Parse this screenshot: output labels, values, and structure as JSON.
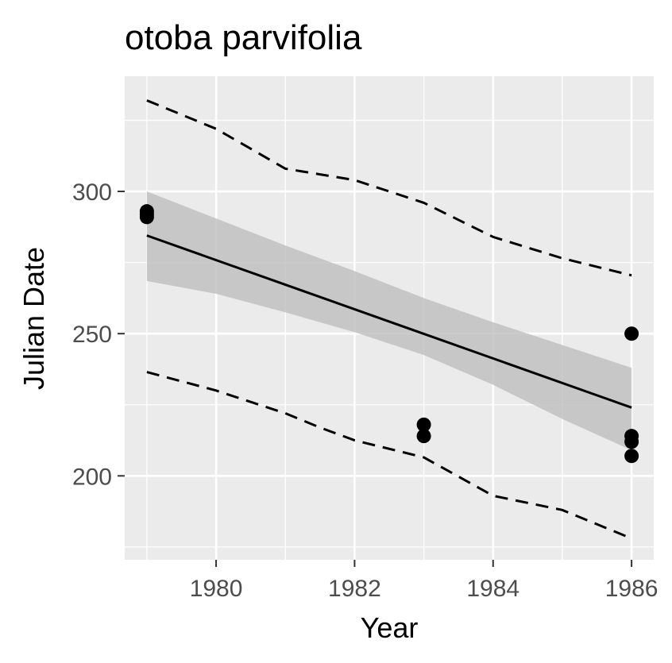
{
  "chart_data": {
    "type": "scatter",
    "title": "otoba parvifolia",
    "xlabel": "Year",
    "ylabel": "Julian Date",
    "xlim": [
      1978.68,
      1986.32
    ],
    "ylim": [
      170.5,
      340.5
    ],
    "x_ticks": [
      1980,
      1982,
      1984,
      1986
    ],
    "x_tick_labels": [
      "1980",
      "1982",
      "1984",
      "1986"
    ],
    "x_minor_ticks": [
      1979,
      1981,
      1983,
      1985
    ],
    "y_ticks": [
      200,
      250,
      300
    ],
    "y_tick_labels": [
      "200",
      "250",
      "300"
    ],
    "y_minor_ticks": [
      175,
      225,
      275,
      325
    ],
    "grid": true,
    "legend": "none",
    "points": [
      {
        "x": 1979,
        "y": 293
      },
      {
        "x": 1979,
        "y": 292
      },
      {
        "x": 1979,
        "y": 291
      },
      {
        "x": 1983,
        "y": 218
      },
      {
        "x": 1983,
        "y": 214
      },
      {
        "x": 1986,
        "y": 250
      },
      {
        "x": 1986,
        "y": 214
      },
      {
        "x": 1986,
        "y": 212
      },
      {
        "x": 1986,
        "y": 207
      }
    ],
    "fit_line": {
      "x": [
        1979,
        1986
      ],
      "y": [
        284.5,
        224
      ]
    },
    "confidence_band": {
      "x": [
        1979,
        1980,
        1981,
        1982,
        1983,
        1984,
        1985,
        1986
      ],
      "lower": [
        268.5,
        264,
        257.5,
        250.5,
        242.5,
        232,
        220,
        209
      ],
      "upper": [
        300,
        290.5,
        281,
        272,
        262.5,
        254,
        246,
        238
      ]
    },
    "prediction_band": {
      "x": [
        1979,
        1980,
        1981,
        1981.5,
        1982,
        1983,
        1984,
        1985,
        1986
      ],
      "lower": [
        236.5,
        230,
        222,
        217,
        212.5,
        206.5,
        193,
        188,
        178
      ],
      "upper": [
        332,
        322,
        308,
        306,
        304,
        296,
        284,
        276.5,
        270.5
      ]
    },
    "colors": {
      "panel": "#ebebeb",
      "grid": "#ffffff",
      "points": "#000000",
      "fit_line": "#000000",
      "band": "#bebebe",
      "prediction_line": "#000000"
    }
  }
}
